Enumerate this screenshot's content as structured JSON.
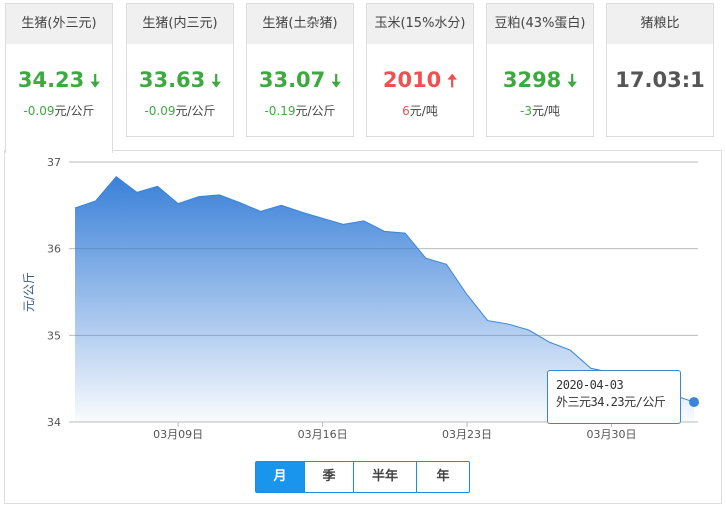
{
  "cards": [
    {
      "title": "生猪(外三元)",
      "value": "34.23",
      "dir": "down",
      "change": "-0.09",
      "unit": "元/公斤"
    },
    {
      "title": "生猪(内三元)",
      "value": "33.63",
      "dir": "down",
      "change": "-0.09",
      "unit": "元/公斤"
    },
    {
      "title": "生猪(土杂猪)",
      "value": "33.07",
      "dir": "down",
      "change": "-0.19",
      "unit": "元/公斤"
    },
    {
      "title": "玉米(15%水分)",
      "value": "2010",
      "dir": "up",
      "change": "6",
      "unit": "元/吨"
    },
    {
      "title": "豆粕(43%蛋白)",
      "value": "3298",
      "dir": "down",
      "change": "-3",
      "unit": "元/吨"
    },
    {
      "title": "猪粮比",
      "value": "17.03:1",
      "dir": "none",
      "change": "",
      "unit": ""
    }
  ],
  "colors": {
    "up": "#f05050",
    "down": "#3daa3f",
    "line": "#3a85d8",
    "active_button": "#1a95ee"
  },
  "tooltip": {
    "date": "2020-04-03",
    "text": "外三元34.23元/公斤"
  },
  "periods": [
    {
      "label": "月",
      "active": true
    },
    {
      "label": "季",
      "active": false
    },
    {
      "label": "半年",
      "active": false
    },
    {
      "label": "年",
      "active": false
    }
  ],
  "chart_data": {
    "type": "area",
    "ylabel": "元/公斤",
    "ylim": [
      34,
      37
    ],
    "yticks": [
      "34",
      "35",
      "36",
      "37"
    ],
    "xticks": [
      {
        "date": "03-09",
        "label": "03月09日"
      },
      {
        "date": "03-16",
        "label": "03月16日"
      },
      {
        "date": "03-23",
        "label": "03月23日"
      },
      {
        "date": "03-30",
        "label": "03月30日"
      }
    ],
    "grid": true,
    "x": [
      "03-04",
      "03-05",
      "03-06",
      "03-07",
      "03-08",
      "03-09",
      "03-10",
      "03-11",
      "03-12",
      "03-13",
      "03-14",
      "03-15",
      "03-16",
      "03-17",
      "03-18",
      "03-19",
      "03-20",
      "03-21",
      "03-22",
      "03-23",
      "03-24",
      "03-25",
      "03-26",
      "03-27",
      "03-28",
      "03-29",
      "03-30",
      "03-31",
      "04-01",
      "04-02",
      "04-03"
    ],
    "values": [
      36.47,
      36.55,
      36.83,
      36.65,
      36.72,
      36.52,
      36.6,
      36.62,
      36.53,
      36.43,
      36.5,
      36.42,
      36.35,
      36.28,
      36.32,
      36.2,
      36.18,
      35.89,
      35.82,
      35.47,
      35.17,
      35.13,
      35.06,
      34.92,
      34.83,
      34.62,
      34.57,
      34.46,
      34.38,
      34.31,
      34.23
    ]
  }
}
